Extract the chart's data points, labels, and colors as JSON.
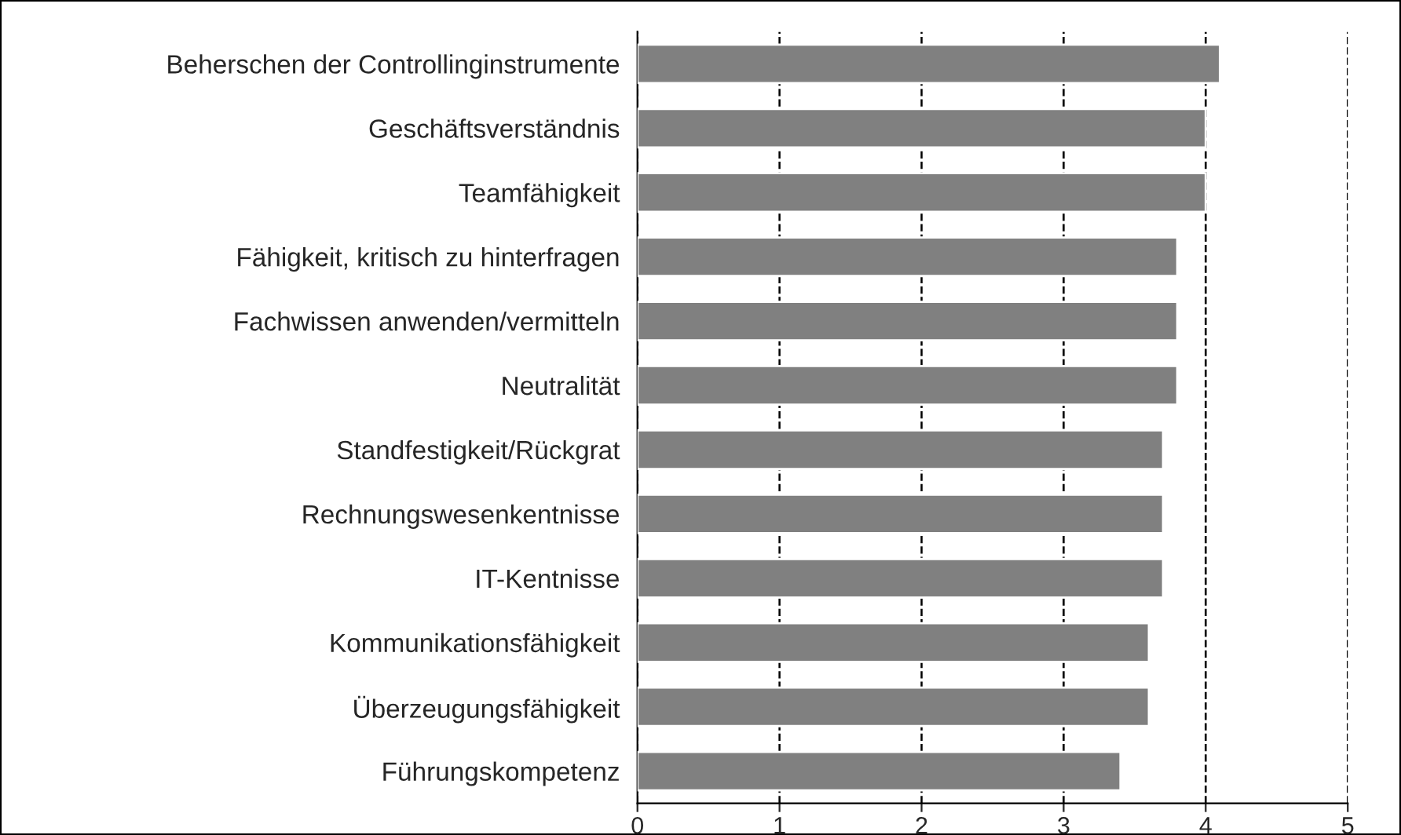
{
  "chart_data": {
    "type": "bar",
    "orientation": "horizontal",
    "categories": [
      "Beherschen der Controllinginstrumente",
      "Geschäftsverständnis",
      "Teamfähigkeit",
      "Fähigkeit, kritisch zu hinterfragen",
      "Fachwissen anwenden/vermitteln",
      "Neutralität",
      "Standfestigkeit/Rückgrat",
      "Rechnungswesenkentnisse",
      "IT-Kentnisse",
      "Kommunikationsfähigkeit",
      "Überzeugungsfähigkeit",
      "Führungskompetenz"
    ],
    "values": [
      4.1,
      4.0,
      4.0,
      3.8,
      3.8,
      3.8,
      3.7,
      3.7,
      3.7,
      3.6,
      3.6,
      3.4
    ],
    "color": "#808080",
    "xlim": [
      0,
      5
    ],
    "xticks": [
      0,
      1,
      2,
      3,
      4,
      5
    ],
    "grid": "x",
    "line_style": "dashed"
  }
}
